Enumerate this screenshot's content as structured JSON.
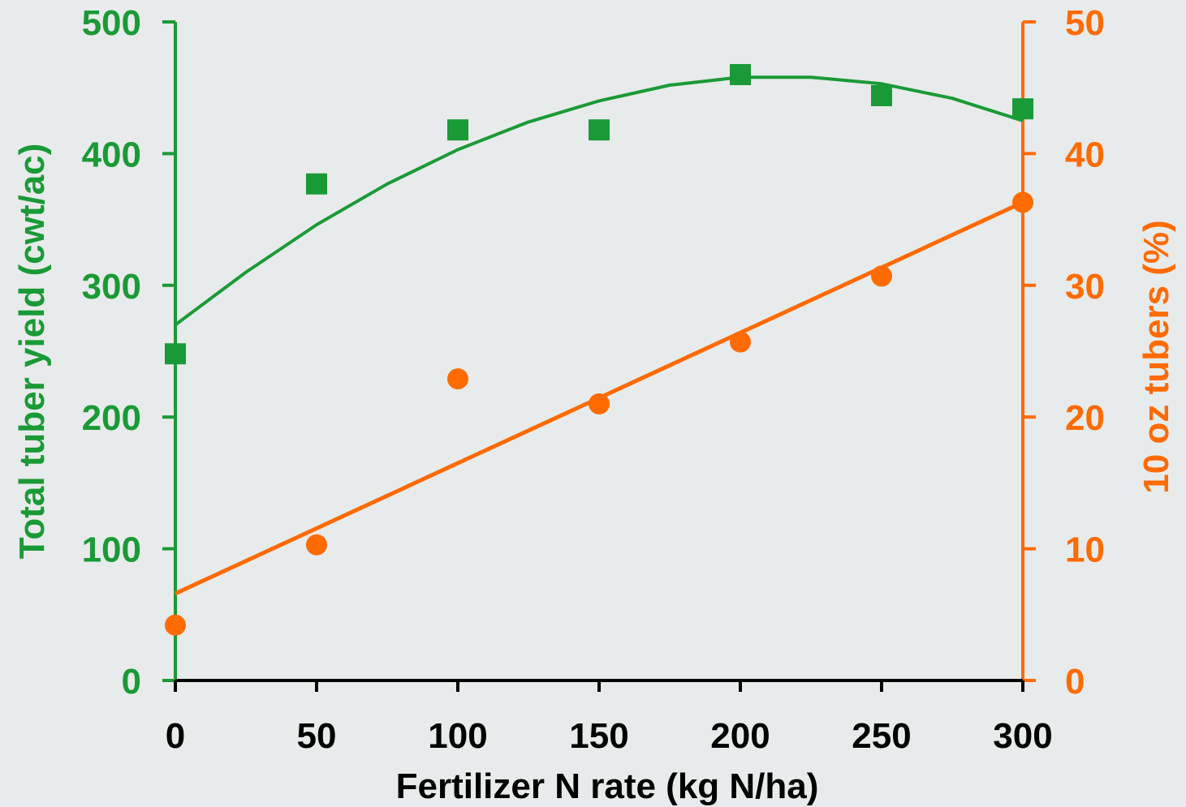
{
  "chart_data": {
    "type": "scatter",
    "title": "",
    "xlabel": "Fertilizer N rate (kg N/ha)",
    "ylabel": "Total tuber yield (cwt/ac)",
    "y2label": "10 oz tubers (%)",
    "xlim": [
      0,
      300
    ],
    "ylim": [
      0,
      500
    ],
    "y2lim": [
      0,
      50
    ],
    "x_ticks": [
      "0",
      "50",
      "100",
      "150",
      "200",
      "250",
      "300"
    ],
    "y_ticks": [
      "0",
      "100",
      "200",
      "300",
      "400",
      "500"
    ],
    "y2_ticks": [
      "0",
      "10",
      "20",
      "30",
      "40",
      "50"
    ],
    "grid": false,
    "colors": {
      "yield": "#1a9a36",
      "tubers": "#ff6b00",
      "background": "#e8ebeb"
    },
    "series": [
      {
        "axis": "left",
        "marker": "square",
        "x": [
          0,
          50,
          100,
          150,
          200,
          250,
          300
        ],
        "y": [
          248,
          377,
          418,
          418,
          460,
          444,
          434
        ]
      },
      {
        "axis": "right",
        "marker": "circle",
        "x": [
          0,
          50,
          100,
          150,
          200,
          250,
          300
        ],
        "y": [
          4.2,
          10.3,
          22.9,
          21.0,
          25.7,
          30.7,
          36.3
        ]
      }
    ],
    "trendlines": [
      {
        "axis": "left",
        "kind": "quadratic",
        "x": [
          0,
          25,
          50,
          75,
          100,
          125,
          150,
          175,
          200,
          225,
          250,
          275,
          300
        ],
        "y": [
          270,
          310,
          346,
          377,
          403,
          424,
          440,
          452,
          458,
          458,
          453,
          442,
          425
        ]
      },
      {
        "axis": "right",
        "kind": "linear",
        "x": [
          0,
          300
        ],
        "y": [
          6.6,
          36.3
        ]
      }
    ]
  }
}
